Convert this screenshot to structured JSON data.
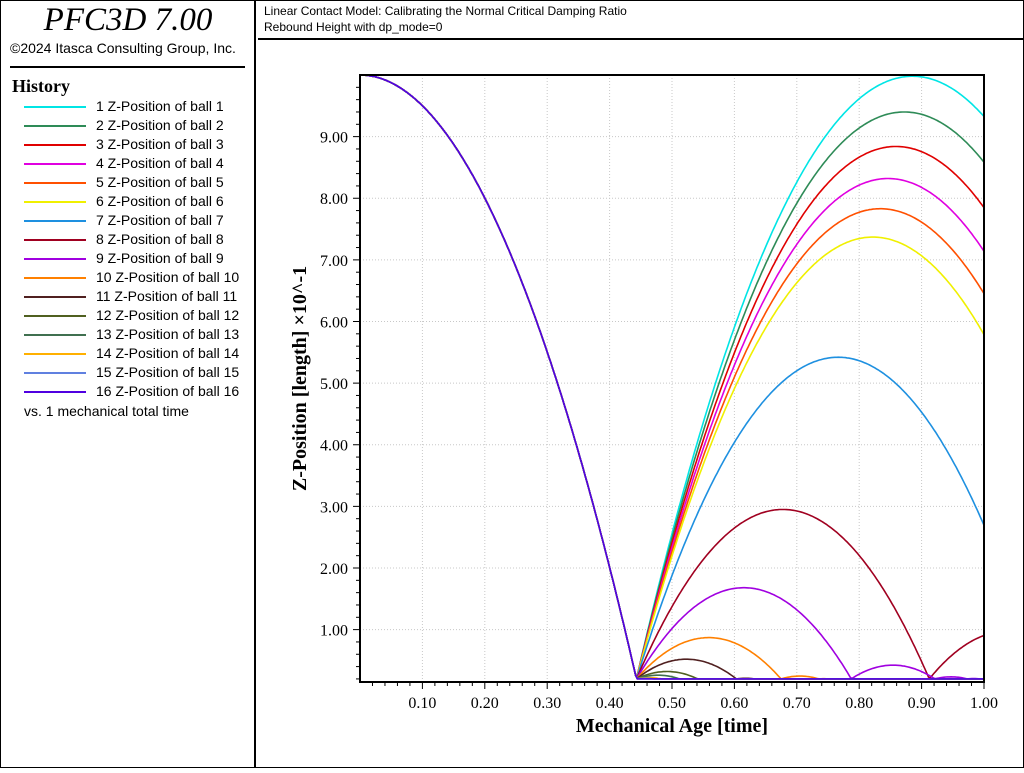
{
  "app": {
    "title": "PFC3D 7.00",
    "copyright": "©2024 Itasca Consulting Group, Inc."
  },
  "history": {
    "title": "History",
    "footer": "vs. 1 mechanical total time"
  },
  "plot": {
    "title_line1": "Linear Contact Model: Calibrating the Normal Critical Damping Ratio",
    "title_line2": "Rebound Height with dp_mode=0"
  },
  "chart_data": {
    "type": "line",
    "xlabel": "Mechanical Age [time]",
    "ylabel": "Z-Position [length] ×10^-1",
    "xlim": [
      0,
      1.0
    ],
    "ylim": [
      0.15,
      10.0
    ],
    "xticks": [
      0.1,
      0.2,
      0.3,
      0.4,
      0.5,
      0.6,
      0.7,
      0.8,
      0.9,
      1.0
    ],
    "xtick_labels": [
      "0.10",
      "0.20",
      "0.30",
      "0.40",
      "0.50",
      "0.60",
      "0.70",
      "0.80",
      "0.90",
      "1.00"
    ],
    "yticks": [
      1,
      2,
      3,
      4,
      5,
      6,
      7,
      8,
      9
    ],
    "ytick_labels": [
      "1.00",
      "2.00",
      "3.00",
      "4.00",
      "5.00",
      "6.00",
      "7.00",
      "8.00",
      "9.00"
    ],
    "grid": true,
    "drop": {
      "start_height": 10.0,
      "ball_radius": 0.2,
      "first_impact_time": 0.443
    },
    "series": [
      {
        "name": "1 Z-Position of ball 1",
        "color": "#00e5e5",
        "rebound_peak": 9.98
      },
      {
        "name": "2 Z-Position of ball 2",
        "color": "#2e8b57",
        "rebound_peak": 9.4
      },
      {
        "name": "3 Z-Position of ball 3",
        "color": "#e00000",
        "rebound_peak": 8.84
      },
      {
        "name": "4 Z-Position of ball 4",
        "color": "#e000e0",
        "rebound_peak": 8.32
      },
      {
        "name": "5 Z-Position of ball 5",
        "color": "#ff5000",
        "rebound_peak": 7.83
      },
      {
        "name": "6 Z-Position of ball 6",
        "color": "#f0f000",
        "rebound_peak": 7.37
      },
      {
        "name": "7 Z-Position of ball 7",
        "color": "#1e90e0",
        "rebound_peak": 5.42
      },
      {
        "name": "8 Z-Position of ball 8",
        "color": "#a00020",
        "rebound_peak": 2.95
      },
      {
        "name": "9 Z-Position of ball 9",
        "color": "#a000e0",
        "rebound_peak": 1.68
      },
      {
        "name": "10 Z-Position of ball 10",
        "color": "#ff8000",
        "rebound_peak": 0.87
      },
      {
        "name": "11 Z-Position of ball 11",
        "color": "#502020",
        "rebound_peak": 0.52
      },
      {
        "name": "12 Z-Position of ball 12",
        "color": "#506020",
        "rebound_peak": 0.32
      },
      {
        "name": "13 Z-Position of ball 13",
        "color": "#407050",
        "rebound_peak": 0.26
      },
      {
        "name": "14 Z-Position of ball 14",
        "color": "#ffb000",
        "rebound_peak": 0.22
      },
      {
        "name": "15 Z-Position of ball 15",
        "color": "#6080e0",
        "rebound_peak": 0.21
      },
      {
        "name": "16 Z-Position of ball 16",
        "color": "#5000e0",
        "rebound_peak": 0.2
      }
    ]
  }
}
